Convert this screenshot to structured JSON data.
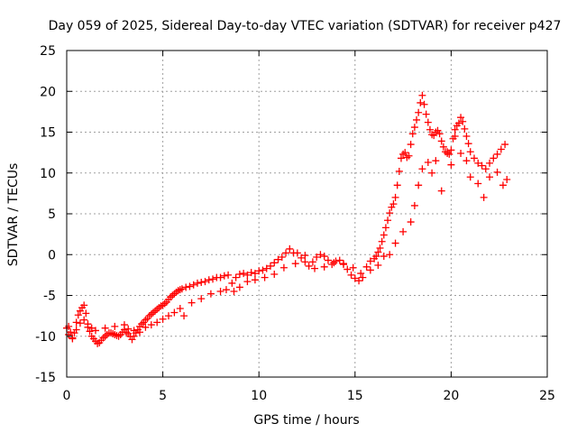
{
  "chart_data": {
    "type": "scatter",
    "title": "Day 059 of 2025, Sidereal Day-to-day VTEC variation (SDTVAR) for receiver p427",
    "xlabel": "GPS time / hours",
    "ylabel": "SDTVAR / TECUs",
    "xlim": [
      0,
      25
    ],
    "ylim": [
      -15,
      25
    ],
    "xticks": [
      "0",
      "5",
      "10",
      "15",
      "20",
      "25"
    ],
    "yticks": [
      "-15",
      "-10",
      "-5",
      "0",
      "5",
      "10",
      "15",
      "20",
      "25"
    ],
    "xtick_values": [
      0,
      5,
      10,
      15,
      20,
      25
    ],
    "ytick_values": [
      -15,
      -10,
      -5,
      0,
      5,
      10,
      15,
      20,
      25
    ],
    "grid": true,
    "marker": "plus",
    "color": "#ff0000",
    "series": [
      {
        "name": "SDTVAR",
        "x": [
          0.0,
          0.1,
          0.2,
          0.3,
          0.4,
          0.5,
          0.6,
          0.7,
          0.8,
          0.9,
          1.0,
          1.1,
          1.2,
          1.3,
          1.4,
          1.5,
          1.6,
          1.7,
          1.8,
          1.9,
          2.0,
          2.1,
          2.2,
          2.3,
          2.4,
          2.5,
          2.6,
          2.7,
          2.8,
          2.9,
          3.0,
          3.1,
          3.2,
          3.3,
          3.4,
          3.5,
          3.6,
          3.7,
          3.8,
          3.9,
          4.0,
          4.1,
          4.2,
          4.3,
          4.4,
          4.5,
          4.6,
          4.7,
          4.8,
          4.9,
          5.0,
          5.1,
          5.2,
          5.3,
          5.4,
          5.5,
          5.6,
          5.7,
          5.8,
          5.9,
          6.0,
          6.2,
          6.4,
          6.6,
          6.8,
          7.0,
          7.2,
          7.4,
          7.6,
          7.8,
          8.0,
          8.2,
          8.4,
          8.6,
          8.8,
          9.0,
          9.2,
          9.4,
          9.6,
          9.8,
          10.0,
          10.2,
          10.4,
          10.6,
          10.8,
          11.0,
          11.2,
          11.4,
          11.6,
          11.8,
          12.0,
          12.2,
          12.4,
          12.6,
          12.8,
          13.0,
          13.2,
          13.4,
          13.6,
          13.8,
          14.0,
          14.2,
          14.4,
          14.6,
          14.8,
          15.0,
          15.2,
          15.4,
          15.6,
          15.8,
          16.0,
          16.1,
          16.2,
          16.3,
          16.4,
          16.5,
          16.6,
          16.7,
          16.8,
          16.9,
          17.0,
          17.1,
          17.2,
          17.3,
          17.4,
          17.5,
          17.6,
          17.7,
          17.8,
          17.9,
          18.0,
          18.1,
          18.2,
          18.3,
          18.4,
          18.5,
          18.6,
          18.7,
          18.8,
          18.9,
          19.0,
          19.1,
          19.2,
          19.3,
          19.4,
          19.5,
          19.6,
          19.7,
          19.8,
          19.9,
          20.0,
          20.1,
          20.2,
          20.3,
          20.4,
          20.5,
          20.6,
          20.7,
          20.8,
          20.9,
          21.0,
          21.2,
          21.4,
          21.6,
          21.8,
          22.0,
          22.2,
          22.4,
          22.6,
          22.8
        ],
        "y": [
          -9.0,
          -8.8,
          -9.5,
          -10.2,
          -9.6,
          -8.3,
          -7.4,
          -6.9,
          -6.5,
          -6.2,
          -7.2,
          -8.5,
          -9.4,
          -10.0,
          -10.3,
          -10.6,
          -10.9,
          -10.8,
          -10.5,
          -10.2,
          -10.0,
          -9.8,
          -9.6,
          -9.6,
          -9.7,
          -9.8,
          -9.9,
          -10.0,
          -9.8,
          -9.5,
          -9.2,
          -9.5,
          -9.7,
          -10.0,
          -10.4,
          -10.0,
          -9.6,
          -9.2,
          -8.8,
          -8.5,
          -8.3,
          -8.0,
          -7.8,
          -7.5,
          -7.3,
          -7.1,
          -6.9,
          -6.7,
          -6.5,
          -6.3,
          -6.2,
          -6.0,
          -5.8,
          -5.5,
          -5.2,
          -5.0,
          -4.8,
          -4.6,
          -4.4,
          -4.3,
          -4.2,
          -4.0,
          -3.9,
          -3.7,
          -3.5,
          -3.4,
          -3.3,
          -3.1,
          -3.0,
          -2.8,
          -2.8,
          -2.6,
          -2.5,
          -3.5,
          -2.8,
          -2.4,
          -2.3,
          -2.5,
          -2.2,
          -2.3,
          -2.0,
          -1.9,
          -1.7,
          -1.4,
          -1.0,
          -0.6,
          -0.3,
          0.2,
          0.7,
          0.2,
          0.2,
          -0.4,
          -0.9,
          -1.4,
          -0.9,
          -0.3,
          0.0,
          -0.2,
          -0.7,
          -1.2,
          -0.8,
          -0.7,
          -1.2,
          -1.8,
          -2.5,
          -2.9,
          -3.2,
          -2.8,
          -1.5,
          -0.8,
          -0.5,
          -0.2,
          0.3,
          0.8,
          1.6,
          2.4,
          3.3,
          4.2,
          5.1,
          5.8,
          6.2,
          7.0,
          8.5,
          10.2,
          11.8,
          12.3,
          12.5,
          11.9,
          12.1,
          13.5,
          14.8,
          15.6,
          16.5,
          17.4,
          18.6,
          19.5,
          18.4,
          17.2,
          16.2,
          15.3,
          14.7,
          14.6,
          15.0,
          15.2,
          14.8,
          13.9,
          13.2,
          12.6,
          12.4,
          12.3,
          12.8,
          14.2,
          15.3,
          15.8,
          16.1,
          16.8,
          16.3,
          15.4,
          14.5,
          13.6,
          12.6,
          11.8,
          11.2,
          10.9,
          10.5,
          11.2,
          11.8,
          12.3,
          12.9,
          13.5
        ],
        "x_extra": [
          0.1,
          0.3,
          0.5,
          0.7,
          0.9,
          1.1,
          1.3,
          1.5,
          2.0,
          2.5,
          3.0,
          3.2,
          3.5,
          3.8,
          4.1,
          4.4,
          4.7,
          5.0,
          5.3,
          5.6,
          5.9,
          6.1,
          6.5,
          7.0,
          7.5,
          8.0,
          8.3,
          8.7,
          9.0,
          9.4,
          9.8,
          10.3,
          10.8,
          11.3,
          11.9,
          12.4,
          12.9,
          13.4,
          13.9,
          14.4,
          14.9,
          15.3,
          15.8,
          16.2,
          16.5,
          16.8,
          17.1,
          17.5,
          17.9,
          18.1,
          18.3,
          18.5,
          18.8,
          19.0,
          19.2,
          19.5,
          19.8,
          20.0,
          20.2,
          20.5,
          20.8,
          21.0,
          21.4,
          21.7,
          22.0,
          22.4,
          22.7,
          22.9
        ],
        "y_extra": [
          -9.8,
          -10.3,
          -9.2,
          -8.4,
          -8.0,
          -8.9,
          -9.0,
          -9.3,
          -9.0,
          -8.8,
          -8.6,
          -9.1,
          -9.3,
          -9.5,
          -8.9,
          -8.6,
          -8.3,
          -7.9,
          -7.5,
          -7.1,
          -6.6,
          -7.5,
          -5.9,
          -5.4,
          -4.8,
          -4.5,
          -4.3,
          -4.5,
          -4.0,
          -3.3,
          -3.1,
          -2.8,
          -2.4,
          -1.6,
          -1.1,
          -0.1,
          -1.7,
          -1.5,
          -1.0,
          -1.1,
          -1.6,
          -2.3,
          -1.9,
          -1.3,
          -0.2,
          0.0,
          1.4,
          2.8,
          4.0,
          6.0,
          8.5,
          10.5,
          11.3,
          10.0,
          11.5,
          7.8,
          12.6,
          11.0,
          14.5,
          12.4,
          11.5,
          9.5,
          8.7,
          7.0,
          9.5,
          10.1,
          8.5,
          9.2
        ]
      }
    ]
  }
}
